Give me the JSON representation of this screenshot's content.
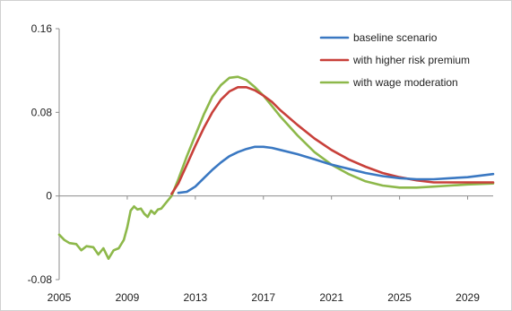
{
  "chart_data": {
    "type": "line",
    "title": "",
    "xlabel": "",
    "ylabel": "",
    "xlim": [
      2005,
      2030.5
    ],
    "ylim": [
      -0.08,
      0.16
    ],
    "x_ticks": [
      2005,
      2009,
      2013,
      2017,
      2021,
      2025,
      2029
    ],
    "x_tick_labels": [
      "2005",
      "2009",
      "2013",
      "2017",
      "2021",
      "2025",
      "2029"
    ],
    "y_ticks": [
      -0.08,
      0,
      0.08,
      0.16
    ],
    "y_tick_labels": [
      "-0.08",
      "0",
      "0.08",
      "0.16"
    ],
    "grid": false,
    "legend_position": "top-right",
    "series": [
      {
        "name": "baseline scenario",
        "color": "#3a78c2",
        "x": [
          2012,
          2012.5,
          2013,
          2013.5,
          2014,
          2014.5,
          2015,
          2015.5,
          2016,
          2016.5,
          2017,
          2017.5,
          2018,
          2019,
          2020,
          2021,
          2022,
          2023,
          2024,
          2025,
          2026,
          2027,
          2028,
          2029,
          2030.5
        ],
        "values": [
          0.003,
          0.004,
          0.009,
          0.017,
          0.025,
          0.032,
          0.038,
          0.042,
          0.045,
          0.047,
          0.047,
          0.046,
          0.044,
          0.04,
          0.035,
          0.03,
          0.026,
          0.022,
          0.019,
          0.017,
          0.016,
          0.016,
          0.017,
          0.018,
          0.021
        ]
      },
      {
        "name": "with higher risk premium",
        "color": "#c8403a",
        "x": [
          2011.6,
          2012,
          2012.5,
          2013,
          2013.5,
          2014,
          2014.5,
          2015,
          2015.5,
          2016,
          2016.5,
          2017,
          2017.5,
          2018,
          2019,
          2020,
          2021,
          2022,
          2023,
          2024,
          2025,
          2026,
          2027,
          2028,
          2029,
          2030.5
        ],
        "values": [
          0.002,
          0.012,
          0.03,
          0.048,
          0.065,
          0.08,
          0.092,
          0.1,
          0.104,
          0.104,
          0.101,
          0.096,
          0.09,
          0.082,
          0.068,
          0.055,
          0.044,
          0.035,
          0.028,
          0.022,
          0.018,
          0.015,
          0.013,
          0.013,
          0.013,
          0.013
        ]
      },
      {
        "name": "with wage moderation",
        "color": "#8db84a",
        "x": [
          2005,
          2005.3,
          2005.6,
          2006,
          2006.3,
          2006.6,
          2007,
          2007.3,
          2007.6,
          2007.9,
          2008.2,
          2008.5,
          2008.8,
          2009,
          2009.2,
          2009.4,
          2009.6,
          2009.8,
          2010,
          2010.2,
          2010.4,
          2010.6,
          2010.8,
          2011,
          2011.3,
          2011.6,
          2012,
          2012.5,
          2013,
          2013.5,
          2014,
          2014.5,
          2015,
          2015.5,
          2016,
          2016.5,
          2017,
          2017.5,
          2018,
          2019,
          2020,
          2021,
          2022,
          2023,
          2024,
          2025,
          2026,
          2027,
          2028,
          2029,
          2030.5
        ],
        "values": [
          -0.037,
          -0.042,
          -0.045,
          -0.046,
          -0.052,
          -0.048,
          -0.049,
          -0.056,
          -0.05,
          -0.06,
          -0.052,
          -0.05,
          -0.042,
          -0.03,
          -0.014,
          -0.01,
          -0.013,
          -0.012,
          -0.017,
          -0.02,
          -0.014,
          -0.017,
          -0.013,
          -0.012,
          -0.006,
          0.0,
          0.016,
          0.038,
          0.058,
          0.078,
          0.095,
          0.106,
          0.113,
          0.114,
          0.111,
          0.104,
          0.096,
          0.086,
          0.076,
          0.058,
          0.042,
          0.03,
          0.021,
          0.014,
          0.01,
          0.008,
          0.008,
          0.009,
          0.01,
          0.011,
          0.012
        ]
      }
    ]
  }
}
